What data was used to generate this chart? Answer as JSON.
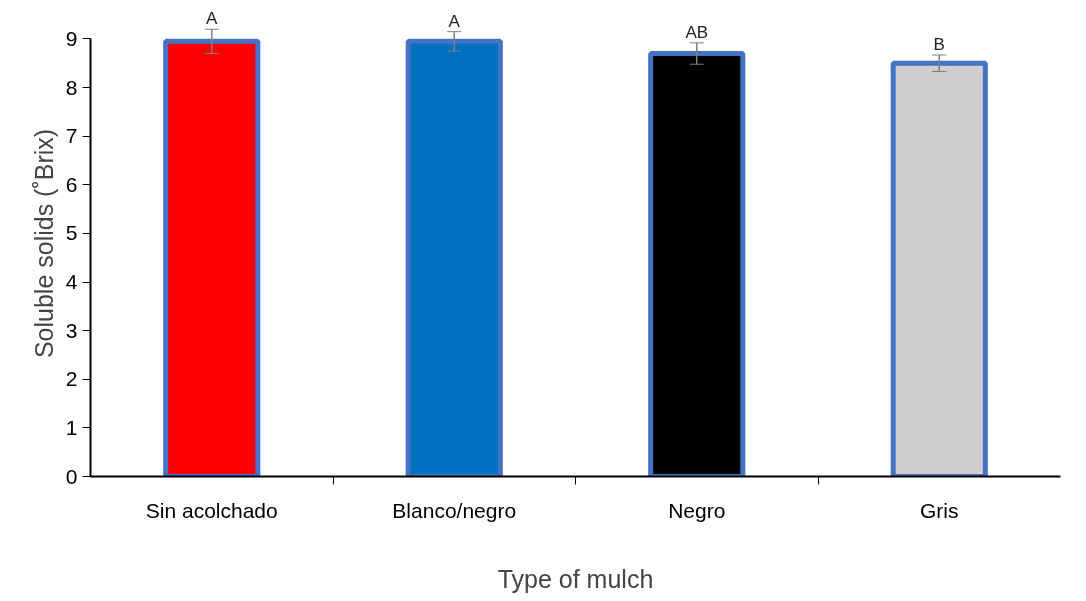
{
  "chart_data": {
    "type": "bar",
    "xlabel": "Type of mulch",
    "ylabel": "Soluble solids (˚Brix)",
    "categories": [
      "Sin acolchado",
      "Blanco/negro",
      "Negro",
      "Gris"
    ],
    "values": [
      8.95,
      8.95,
      8.7,
      8.5
    ],
    "colors": [
      "#ff0000",
      "#0070c0",
      "#000000",
      "#d0cece"
    ],
    "errors": [
      0.25,
      0.2,
      0.22,
      0.17
    ],
    "ylim": [
      0,
      9
    ],
    "yticks": [
      0,
      1,
      2,
      3,
      4,
      5,
      6,
      7,
      8,
      9
    ],
    "grid": false,
    "annotations": [
      {
        "text": "A",
        "x": "Sin acolchado",
        "y": 9.2
      },
      {
        "text": "A",
        "x": "Blanco/negro",
        "y": 9.15
      },
      {
        "text": "AB",
        "x": "Negro",
        "y": 8.92
      },
      {
        "text": "B",
        "x": "Gris",
        "y": 8.67
      }
    ]
  }
}
